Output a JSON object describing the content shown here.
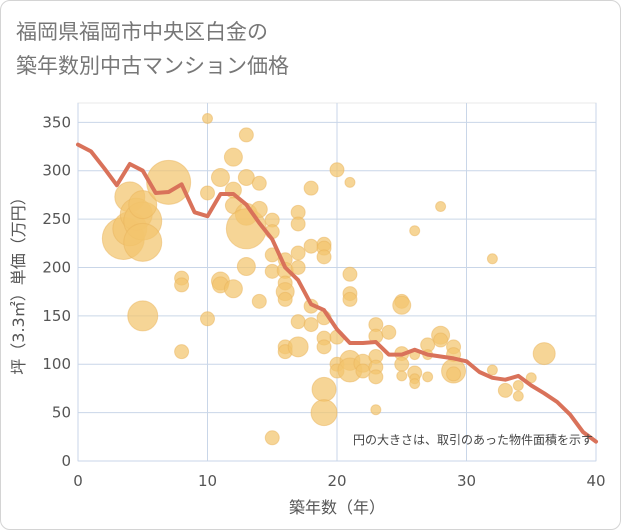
{
  "title_line1": "福岡県福岡市中央区白金の",
  "title_line2": "築年数別中古マンション価格",
  "chart_data": {
    "type": "scatter",
    "xlabel": "築年数（年）",
    "ylabel": "坪（3.3㎡）単価（万円）",
    "xlim": [
      0,
      40
    ],
    "ylim": [
      0,
      370
    ],
    "xticks": [
      "0",
      "10",
      "20",
      "30",
      "40"
    ],
    "yticks": [
      "0",
      "50",
      "100",
      "150",
      "200",
      "250",
      "300",
      "350"
    ],
    "annotation": "円の大きさは、取引のあった物件面積を示す",
    "series": [
      {
        "type": "bubble",
        "color": "#f2c56e",
        "points": [
          {
            "x": 3.5,
            "y": 230,
            "r": 21
          },
          {
            "x": 4,
            "y": 240,
            "r": 17
          },
          {
            "x": 4,
            "y": 273,
            "r": 15
          },
          {
            "x": 4.5,
            "y": 255,
            "r": 16
          },
          {
            "x": 5,
            "y": 248,
            "r": 19
          },
          {
            "x": 5,
            "y": 226,
            "r": 19
          },
          {
            "x": 5,
            "y": 265,
            "r": 14
          },
          {
            "x": 5,
            "y": 150,
            "r": 15
          },
          {
            "x": 7,
            "y": 288,
            "r": 22
          },
          {
            "x": 8,
            "y": 189,
            "r": 7
          },
          {
            "x": 8,
            "y": 182,
            "r": 7
          },
          {
            "x": 8,
            "y": 113,
            "r": 7
          },
          {
            "x": 10,
            "y": 354,
            "r": 5
          },
          {
            "x": 10,
            "y": 277,
            "r": 7
          },
          {
            "x": 10,
            "y": 147,
            "r": 7
          },
          {
            "x": 11,
            "y": 293,
            "r": 9
          },
          {
            "x": 11,
            "y": 186,
            "r": 9
          },
          {
            "x": 11,
            "y": 182,
            "r": 8
          },
          {
            "x": 12,
            "y": 314,
            "r": 9
          },
          {
            "x": 12,
            "y": 280,
            "r": 8
          },
          {
            "x": 12,
            "y": 264,
            "r": 8
          },
          {
            "x": 12,
            "y": 178,
            "r": 9
          },
          {
            "x": 13,
            "y": 337,
            "r": 7
          },
          {
            "x": 13,
            "y": 293,
            "r": 8
          },
          {
            "x": 13,
            "y": 255,
            "r": 11
          },
          {
            "x": 13,
            "y": 240,
            "r": 20
          },
          {
            "x": 13,
            "y": 201,
            "r": 9
          },
          {
            "x": 14,
            "y": 287,
            "r": 7
          },
          {
            "x": 14,
            "y": 260,
            "r": 8
          },
          {
            "x": 14,
            "y": 165,
            "r": 7
          },
          {
            "x": 15,
            "y": 249,
            "r": 7
          },
          {
            "x": 15,
            "y": 237,
            "r": 7
          },
          {
            "x": 15,
            "y": 213,
            "r": 7
          },
          {
            "x": 15,
            "y": 196,
            "r": 7
          },
          {
            "x": 15,
            "y": 24,
            "r": 7
          },
          {
            "x": 16,
            "y": 208,
            "r": 7
          },
          {
            "x": 16,
            "y": 197,
            "r": 8
          },
          {
            "x": 16,
            "y": 184,
            "r": 7
          },
          {
            "x": 16,
            "y": 175,
            "r": 9
          },
          {
            "x": 16,
            "y": 167,
            "r": 7
          },
          {
            "x": 16,
            "y": 118,
            "r": 7
          },
          {
            "x": 16,
            "y": 113,
            "r": 7
          },
          {
            "x": 17,
            "y": 257,
            "r": 7
          },
          {
            "x": 17,
            "y": 245,
            "r": 7
          },
          {
            "x": 17,
            "y": 215,
            "r": 7
          },
          {
            "x": 17,
            "y": 200,
            "r": 7
          },
          {
            "x": 17,
            "y": 144,
            "r": 7
          },
          {
            "x": 17,
            "y": 118,
            "r": 10
          },
          {
            "x": 18,
            "y": 282,
            "r": 7
          },
          {
            "x": 18,
            "y": 222,
            "r": 7
          },
          {
            "x": 18,
            "y": 160,
            "r": 7
          },
          {
            "x": 18,
            "y": 141,
            "r": 7
          },
          {
            "x": 19,
            "y": 224,
            "r": 7
          },
          {
            "x": 19,
            "y": 220,
            "r": 7
          },
          {
            "x": 19,
            "y": 211,
            "r": 7
          },
          {
            "x": 19,
            "y": 148,
            "r": 7
          },
          {
            "x": 19,
            "y": 127,
            "r": 7
          },
          {
            "x": 19,
            "y": 118,
            "r": 7
          },
          {
            "x": 19,
            "y": 74,
            "r": 12
          },
          {
            "x": 19,
            "y": 50,
            "r": 13
          },
          {
            "x": 20,
            "y": 301,
            "r": 7
          },
          {
            "x": 20,
            "y": 128,
            "r": 7
          },
          {
            "x": 20,
            "y": 100,
            "r": 7
          },
          {
            "x": 20,
            "y": 93,
            "r": 7
          },
          {
            "x": 21,
            "y": 288,
            "r": 5
          },
          {
            "x": 21,
            "y": 193,
            "r": 7
          },
          {
            "x": 21,
            "y": 173,
            "r": 7
          },
          {
            "x": 21,
            "y": 167,
            "r": 7
          },
          {
            "x": 21,
            "y": 104,
            "r": 10
          },
          {
            "x": 21,
            "y": 94,
            "r": 12
          },
          {
            "x": 22,
            "y": 101,
            "r": 9
          },
          {
            "x": 22,
            "y": 93,
            "r": 7
          },
          {
            "x": 23,
            "y": 141,
            "r": 7
          },
          {
            "x": 23,
            "y": 129,
            "r": 7
          },
          {
            "x": 23,
            "y": 108,
            "r": 7
          },
          {
            "x": 23,
            "y": 97,
            "r": 7
          },
          {
            "x": 23,
            "y": 87,
            "r": 7
          },
          {
            "x": 23,
            "y": 53,
            "r": 5
          },
          {
            "x": 24,
            "y": 133,
            "r": 7
          },
          {
            "x": 25,
            "y": 165,
            "r": 7
          },
          {
            "x": 25,
            "y": 161,
            "r": 9
          },
          {
            "x": 25,
            "y": 111,
            "r": 7
          },
          {
            "x": 25,
            "y": 100,
            "r": 7
          },
          {
            "x": 25,
            "y": 88,
            "r": 5
          },
          {
            "x": 26,
            "y": 238,
            "r": 5
          },
          {
            "x": 26,
            "y": 110,
            "r": 5
          },
          {
            "x": 26,
            "y": 91,
            "r": 7
          },
          {
            "x": 26,
            "y": 85,
            "r": 5
          },
          {
            "x": 26,
            "y": 80,
            "r": 5
          },
          {
            "x": 27,
            "y": 120,
            "r": 7
          },
          {
            "x": 27,
            "y": 110,
            "r": 5
          },
          {
            "x": 27,
            "y": 87,
            "r": 5
          },
          {
            "x": 28,
            "y": 263,
            "r": 5
          },
          {
            "x": 28,
            "y": 130,
            "r": 9
          },
          {
            "x": 28,
            "y": 125,
            "r": 7
          },
          {
            "x": 29,
            "y": 118,
            "r": 7
          },
          {
            "x": 29,
            "y": 110,
            "r": 7
          },
          {
            "x": 29,
            "y": 93,
            "r": 12
          },
          {
            "x": 29,
            "y": 90,
            "r": 7
          },
          {
            "x": 32,
            "y": 209,
            "r": 5
          },
          {
            "x": 32,
            "y": 94,
            "r": 5
          },
          {
            "x": 33,
            "y": 73,
            "r": 7
          },
          {
            "x": 34,
            "y": 78,
            "r": 5
          },
          {
            "x": 34,
            "y": 67,
            "r": 5
          },
          {
            "x": 35,
            "y": 86,
            "r": 5
          },
          {
            "x": 36,
            "y": 111,
            "r": 11
          }
        ]
      },
      {
        "type": "line",
        "color": "#d9725a",
        "x": [
          0,
          1,
          2,
          3,
          4,
          5,
          6,
          7,
          8,
          9,
          10,
          11,
          12,
          13,
          14,
          15,
          16,
          17,
          18,
          19,
          20,
          21,
          22,
          23,
          24,
          25,
          26,
          27,
          28,
          29,
          30,
          31,
          32,
          33,
          34,
          35,
          36,
          37,
          38,
          39,
          40
        ],
        "y": [
          327,
          320,
          303,
          285,
          307,
          300,
          277,
          278,
          286,
          257,
          253,
          276,
          276,
          265,
          246,
          229,
          200,
          187,
          162,
          156,
          136,
          122,
          122,
          123,
          110,
          110,
          115,
          110,
          108,
          106,
          103,
          92,
          86,
          84,
          88,
          78,
          70,
          61,
          48,
          30,
          20
        ]
      }
    ]
  }
}
